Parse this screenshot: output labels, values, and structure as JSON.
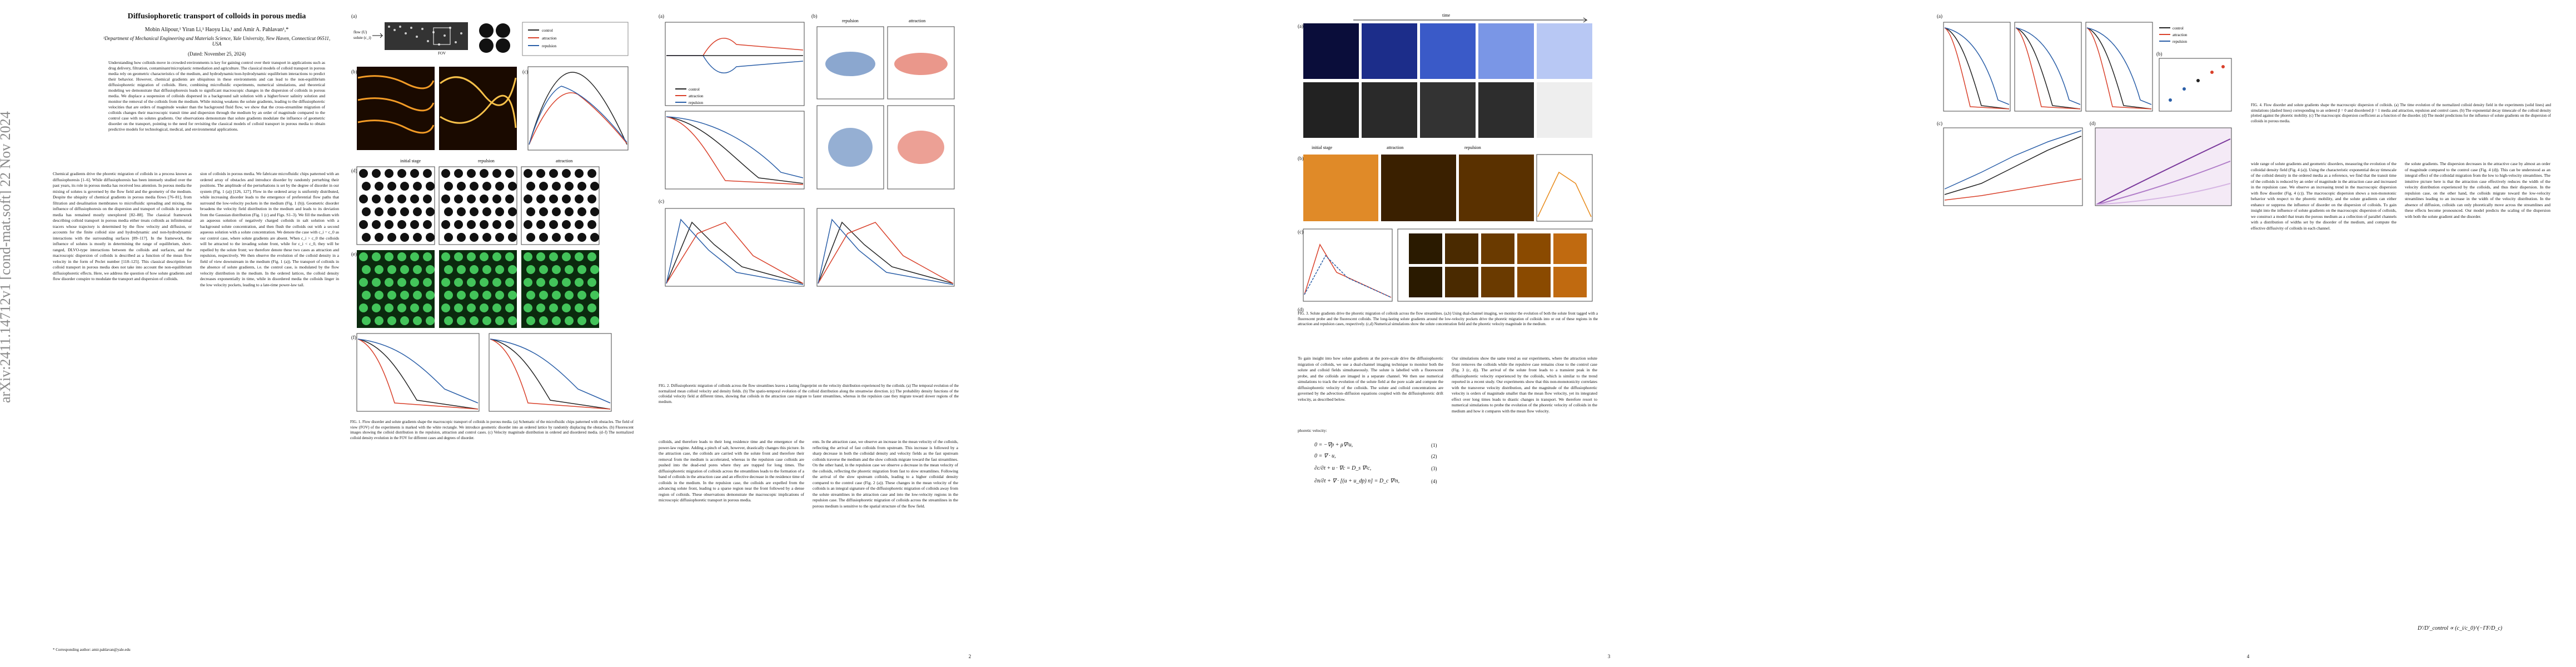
{
  "arxiv_id": "arXiv:2411.14712v1  [cond-mat.soft]  22 Nov 2024",
  "paper": {
    "title": "Diffusiophoretic transport of colloids in porous media",
    "authors": "Mobin Alipour,¹ Yiran Li,¹ Haoyu Liu,¹ and Amir A. Pahlavan¹,*",
    "affiliation": "¹Department of Mechanical Engineering and Materials Science, Yale University, New Haven, Connecticut 06511, USA",
    "date": "(Dated: November 25, 2024)",
    "abstract": "Understanding how colloids move in crowded environments is key for gaining control over their transport in applications such as drug delivery, filtration, contaminant/microplastic remediation and agriculture. The classical models of colloid transport in porous media rely on geometric characteristics of the medium, and hydrodynamic/non-hydrodynamic equilibrium interactions to predict their behavior. However, chemical gradients are ubiquitous in these environments and can lead to the non-equilibrium diffusiophoretic migration of colloids. Here, combining microfluidic experiments, numerical simulations, and theoretical modeling we demonstrate that diffusiophoresis leads to significant macroscopic changes in the dispersion of colloids in porous media. We displace a suspension of colloids dispersed in a background salt solution with a higher/lower salinity solution and monitor the removal of the colloids from the medium. While mixing weakens the solute gradients, leading to the diffusiophoretic velocities that are orders of magnitude weaker than the background fluid flow, we show that the cross-streamline migration of colloids changes their macroscopic transit time and dispersion through the medium by an order of magnitude compared to the control case with no solutes gradients. Our observations demonstrate that solute gradients modulate the influence of geometric disorder on the transport, pointing to the need for revisiting the classical models of colloid transport in porous media to obtain predictive models for technological, medical, and environmental applications.",
    "footnote": "* Corresponding author: amir.pahlavan@yale.edu",
    "p1_col1": "Chemical gradients drive the phoretic migration of colloids in a process known as diffusiophoresis [1–6]. While diffusiophoresis has been intensely studied over the past years, its role in porous media has received less attention. In porous media the mixing of solutes is governed by the flow field and the geometry of the medium. Despite the ubiquity of chemical gradients in porous media flows [76–81], from filtration and desalination membranes to microfluidic spreading and mixing, the influence of diffusiophoresis on the dispersion and transport of colloids in porous media has remained mostly unexplored [82–88]. The classical framework describing colloid transport in porous media either treats colloids as infinitesimal tracers whose trajectory is determined by the flow velocity and diffusion, or accounts for the finite colloid size and hydrodynamic and non-hydrodynamic interactions with the surrounding surfaces [89–117]. In the framework, the influence of solutes is mostly in determining the range of equilibrium, short-ranged, DLVO-type interactions between the colloids and surfaces, and the macroscopic dispersion of colloids is described as a function of the mean flow velocity in the form of Peclet number [118–125]. This classical description for colloid transport in porous media does not take into account the non-equilibrium diffusiophoretic effects. Here, we address the question of how solute gradients and flow disorder conspire to modulate the transport and dispersion of colloids.",
    "p1_col2": "sion of colloids in porous media. We fabricate microfluidic chips patterned with an ordered array of obstacles and introduce disorder by randomly perturbing their positions. The amplitude of the perturbations is set by the degree of disorder in our system (Fig. 1 (a)) [126, 127]. Flow in the ordered array is uniformly distributed, while increasing disorder leads to the emergence of preferential flow paths that surround the low-velocity pockets in the medium (Fig. 1 (b)). Geometric disorder broadens the velocity field distribution in the medium and leads to its deviation from the Gaussian distribution (Fig. 1 (c) and Figs. S1–3). We fill the medium with an aqueous solution of negatively charged colloids in salt solution with a background solute concentration, and then flush the colloids out with a second aqueous solution with a solute concentration. We denote the case with c_i = c_0 as our control case, where solute gradients are absent. When c_i > c_0 the colloids will be attracted to the invading solute front, while for c_i < c_0, they will be repelled by the solute front; we therefore denote these two cases as attraction and repulsion, respectively. We then observe the evolution of the colloid density in a field of view downstream in the medium (Fig. 1 (a)). The transport of colloids in the absence of solute gradients, i.e. the control case, is modulated by the flow velocity distribution in the medium. In the ordered lattices, the colloid density decreases exponentially in time, while in disordered media the colloids linger in the low velocity pockets, leading to a late-time power-law tail.",
    "fig1_caption": "FIG. 1. Flow disorder and solute gradients shape the macroscopic transport of colloids in porous media. (a) Schematic of the microfluidic chips patterned with obstacles. The field of view (FOV) of the experiments is marked with the white rectangle. We introduce geometric disorder into an ordered lattice by randomly displacing the obstacles. (b) Fluorescent images showing the colloid distribution in the repulsion, attraction and control cases. (c) Velocity magnitude distribution in ordered and disordered media. (d–f) The normalized colloid density evolution in the FOV for different cases and degrees of disorder.",
    "p2_col1": "colloids, and therefore leads to their long residence time and the emergence of the power-law regime. Adding a pinch of salt, however, drastically changes this picture. In the attraction case, the colloids are carried with the solute front and therefore their removal from the medium is accelerated, whereas in the repulsion case colloids are pushed into the dead-end pores where they are trapped for long times. The diffusiophoretic migration of colloids across the streamlines leads to the formation of a band of colloids in the attraction case and an effective decrease in the residence time of colloids in the medium. In the repulsion case, the colloids are expelled from the advancing solute front, leading to a sparse region near the front followed by a dense region of colloids. These observations demonstrate the macroscopic implications of microscopic diffusiophoretic transport in porous media.",
    "p2_col2": "ents. In the attraction case, we observe an increase in the mean velocity of the colloids, reflecting the arrival of fast colloids from upstream. This increase is followed by a sharp decrease in both the colloidal density and velocity fields as the fast upstream colloids traverse the medium and the slow colloids migrate toward the fast streamlines. On the other hand, in the repulsion case we observe a decrease in the mean velocity of the colloids, reflecting the phoretic migration from fast to slow streamlines. Following the arrival of the slow upstream colloids, leading to a higher colloidal density compared to the control case (Fig. 2 (a)). These changes in the mean velocity of the colloids is an integral signature of the diffusiophoretic migration of colloids away from the solute streamlines in the attraction case and into the low-velocity regions in the repulsion case. The diffusiophoretic migration of colloids across the streamlines in the porous medium is sensitive to the spatial structure of the flow field.",
    "fig2_caption": "FIG. 2. Diffusiophoretic migration of colloids across the flow streamlines leaves a lasting fingerprint on the velocity distribution experienced by the colloids. (a) The temporal evolution of the normalized mean colloid velocity and density fields. (b) The spatio-temporal evolution of the colloid distribution along the streamwise direction. (c) The probability density functions of the colloidal velocity field at different times, showing that colloids in the attraction case migrate to faster streamlines, whereas in the repulsion case they migrate toward slower regions of the medium.",
    "p3_col1": "To gain insight into how solute gradients at the pore-scale drive the diffusiophoretic migration of colloids, we use a dual-channel imaging technique to monitor both the solute and colloid fields simultaneously. The solute is labelled with a fluorescent probe, and the colloids are imaged in a separate channel. We then use numerical simulations to track the evolution of the solute field at the pore scale and compute the diffusiophoretic velocity of the colloids. The solute and colloid concentrations are governed by the advection–diffusion equations coupled with the diffusiophoretic drift velocity, as described below.",
    "eq_label": "phoretic velocity:",
    "eq1": "0 = −∇p + μ∇²u,",
    "eq2": "0 = ∇ · u,",
    "eq3": "∂c/∂t + u · ∇c = D_s ∇²c,",
    "eq4": "∂n/∂t + ∇ · [(u + u_dp) n] = D_c ∇²n,",
    "eq_nums": [
      "(1)",
      "(2)",
      "(3)",
      "(4)"
    ],
    "p3_col2": "Our simulations show the same trend as our experiments, where the attraction solute front removes the colloids while the repulsive case remains close to the control case (Fig. 3 (c, d)). The arrival of the solute front leads to a transient peak in the diffusiophoretic velocity experienced by the colloids, which is similar to the trend reported in a recent study. Our experiments show that this non-monotonicity correlates with the transverse velocity distribution, and the magnitude of the diffusiophoretic velocity is orders of magnitude smaller than the mean flow velocity, yet its integrated effect over long times leads to drastic changes in transport. We therefore resort to numerical simulations to probe the evolution of the phoretic velocity of colloids in the medium and how it compares with the mean flow velocity.",
    "fig3_caption": "FIG. 3. Solute gradients drive the phoretic migration of colloids across the flow streamlines. (a,b) Using dual-channel imaging, we monitor the evolution of both the solute front tagged with a fluorescent probe and the fluorescent colloids. The long-lasting solute gradients around the low-velocity pockets drive the phoretic migration of colloids into or out of these regions in the attraction and repulsion cases, respectively. (c,d) Numerical simulations show the solute concentration field and the phoretic velocity magnitude in the medium.",
    "p4_col1": "wide range of solute gradients and geometric disorders, measuring the evolution of the colloidal density field (Fig. 4 (a)). Using the characteristic exponential decay timescale of the colloid density in the ordered media as a reference, we find that the transit time of the colloids is reduced by an order of magnitude in the attraction case and increased in the repulsion case. We observe an increasing trend in the macroscopic dispersion with flow disorder (Fig. 4 (c)). The macroscopic dispersion shows a non-monotonic behavior with respect to the phoretic mobility, and the solute gradients can either enhance or suppress the influence of disorder on the dispersion of colloids. To gain insight into the influence of solute gradients on the macroscopic dispersion of colloids, we construct a model that treats the porous medium as a collection of parallel channels with a distribution of widths set by the disorder of the medium, and compute the effective diffusivity of colloids in each channel.",
    "p4_col2": "the solute gradients. The dispersion decreases in the attractive case by almost an order of magnitude compared to the control case (Fig. 4 (d)). This can be understood as an integral effect of the colloidal migration from the low to high-velocity streamlines. The intuitive picture here is that the attraction case effectively reduces the width of the velocity distribution experienced by the colloids, and thus their dispersion. In the repulsion case, on the other hand, the colloids migrate toward the low-velocity streamlines leading to an increase in the width of the velocity distribution. In the absence of diffusion, colloids can only phoretically move across the streamlines and these effects become pronounced. Our model predicts the scaling of the dispersion with both the solute gradient and the disorder.",
    "fig4_caption": "FIG. 4. Flow disorder and solute gradients shape the macroscopic dispersion of colloids. (a) The time evolution of the normalized colloid density field in the experiments (solid lines) and simulations (dashed lines) corresponding to an ordered β = 0 and disordered β = 1 media and attraction, repulsion and control cases. (b) The exponential decay timescale of the colloid density plotted against the phoretic mobility. (c) The macroscopic dispersion coefficient as a function of the disorder. (d) The model predictions for the influence of solute gradients on the dispersion of colloids in porous media.",
    "p4_eq": "D′/D′_control ∝ (c_i/c_0)^(−ΓF/D_c)",
    "page_numbers": [
      "2",
      "3",
      "4"
    ]
  },
  "figures": {
    "fig1": {
      "labels": [
        "(a)",
        "(b)",
        "(c)",
        "(d)",
        "(e)",
        "(f)"
      ],
      "flow_label": "flow (U)",
      "solute_label": "solute (c_i)",
      "fov_label": "FOV",
      "legend": [
        "control",
        "attraction",
        "repulsion"
      ],
      "row_titles": [
        "initial stage",
        "repulsion",
        "attraction"
      ]
    },
    "fig2": {
      "labels": [
        "(a)",
        "(b)",
        "(c)"
      ],
      "legend": [
        "control",
        "attraction",
        "repulsion"
      ],
      "panel_titles": [
        "repulsion",
        "attraction"
      ]
    },
    "fig3": {
      "labels": [
        "(a)",
        "(b)",
        "(c)",
        "(d)"
      ],
      "time_bar": "time",
      "row_titles": [
        "initial stage",
        "attraction",
        "repulsion"
      ]
    },
    "fig4": {
      "labels": [
        "(a)",
        "(b)",
        "(c)",
        "(d)"
      ],
      "legend": [
        "control",
        "attraction",
        "repulsion"
      ]
    }
  },
  "colors": {
    "attraction": "#d9412b",
    "repulsion": "#2b5fa8",
    "control": "#222222",
    "fluoro_green": "#43c45a",
    "heat_orange": "#e88a1a"
  }
}
